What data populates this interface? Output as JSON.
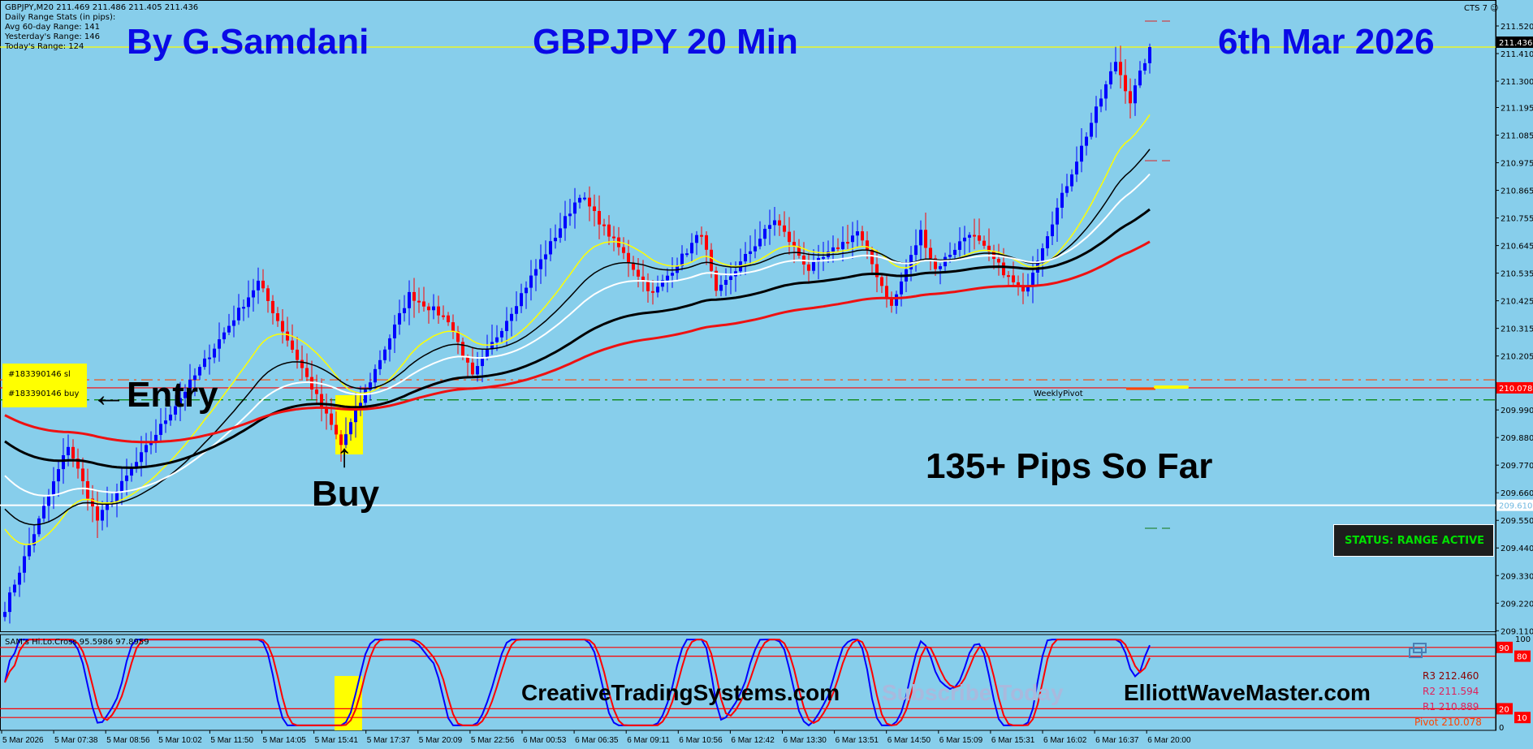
{
  "header": {
    "symbol_line": "GBPJPY,M20  211.469 211.486 211.405 211.436",
    "stats_title": "Daily Range Stats (in pips):",
    "avg_range": "Avg 60-day Range: 141",
    "yesterday_range": "Yesterday's Range: 146",
    "today_range": "Today's Range: 124",
    "cts_label": "CTS 7"
  },
  "titles": {
    "author": "By G.Samdani",
    "instrument": "GBPJPY 20 Min",
    "date": "6th Mar 2026"
  },
  "annotations": {
    "entry": "←Entry",
    "buy": "Buy",
    "buy_arrow": "↑",
    "pips": "135+ Pips So Far",
    "order_sl": "#183390146 sl",
    "order_buy": "#183390146 buy",
    "weekly_pivot": "WeeklyPivot",
    "status": "STATUS: RANGE ACTIVE",
    "site1": "CreativeTradingSystems.com",
    "site2": "ElliottWaveMaster.com",
    "watermark": "Subscribe Today"
  },
  "pivots": {
    "r3": "R3 212.460",
    "r2": "R2 211.594",
    "r1": "R1 210.889",
    "pivot": "Pivot 210.078"
  },
  "colors": {
    "background": "#87ceeb",
    "bull": "#0000ff",
    "bear": "#ff0000",
    "title": "#0a0ae6",
    "status_text": "#00e000"
  },
  "chart_data": {
    "type": "candlestick",
    "title": "GBPJPY 20 Min",
    "symbol": "GBPJPY",
    "timeframe": "M20",
    "ohlc_last": {
      "open": 211.469,
      "high": 211.486,
      "low": 211.405,
      "close": 211.436
    },
    "ylim": [
      209.06,
      211.6
    ],
    "y_ticks": [
      "211.520",
      "211.410",
      "211.300",
      "211.195",
      "211.085",
      "210.975",
      "210.865",
      "210.755",
      "210.645",
      "210.535",
      "210.425",
      "210.315",
      "210.205",
      "209.990",
      "209.880",
      "209.770",
      "209.660",
      "209.550",
      "209.440",
      "209.330",
      "209.220",
      "209.110"
    ],
    "x_ticks": [
      "5 Mar 2026",
      "5 Mar 07:38",
      "5 Mar 08:56",
      "5 Mar 10:02",
      "5 Mar 11:50",
      "5 Mar 14:05",
      "5 Mar 15:41",
      "5 Mar 17:37",
      "5 Mar 20:09",
      "5 Mar 22:56",
      "6 Mar 00:53",
      "6 Mar 06:35",
      "6 Mar 09:11",
      "6 Mar 10:56",
      "6 Mar 12:42",
      "6 Mar 13:30",
      "6 Mar 13:51",
      "6 Mar 14:50",
      "6 Mar 15:09",
      "6 Mar 15:31",
      "6 Mar 16:02",
      "6 Mar 16:37",
      "6 Mar 20:00"
    ],
    "bar_count": 236,
    "close_waypoints": [
      [
        0,
        209.2
      ],
      [
        13,
        209.85
      ],
      [
        19,
        209.55
      ],
      [
        52,
        210.5
      ],
      [
        69,
        209.85
      ],
      [
        83,
        210.45
      ],
      [
        91,
        210.35
      ],
      [
        96,
        210.12
      ],
      [
        118,
        210.85
      ],
      [
        133,
        210.45
      ],
      [
        143,
        210.7
      ],
      [
        146,
        210.45
      ],
      [
        158,
        210.75
      ],
      [
        165,
        210.55
      ],
      [
        175,
        210.7
      ],
      [
        182,
        210.4
      ],
      [
        188,
        210.7
      ],
      [
        191,
        210.55
      ],
      [
        198,
        210.7
      ],
      [
        209,
        210.45
      ],
      [
        228,
        211.38
      ],
      [
        231,
        211.22
      ],
      [
        235,
        211.436
      ]
    ],
    "moving_averages": [
      {
        "name": "MA fast",
        "color": "#ffff00",
        "period": 20,
        "seed": 209.55,
        "width": 1.5
      },
      {
        "name": "MA 2",
        "color": "#000000",
        "period": 34,
        "seed": 209.62,
        "width": 1.5
      },
      {
        "name": "MA 3",
        "color": "#ffffff",
        "period": 50,
        "seed": 209.75,
        "width": 2
      },
      {
        "name": "MA 4",
        "color": "#000000",
        "period": 89,
        "seed": 209.88,
        "width": 3
      },
      {
        "name": "MA slow",
        "color": "#ee1111",
        "period": 144,
        "seed": 209.98,
        "width": 3
      }
    ],
    "levels": [
      {
        "name": "current",
        "price": 211.436,
        "label": "211.436",
        "color": "#ffff00"
      },
      {
        "name": "weekly-pivot",
        "price": 210.078,
        "label": "210.078",
        "color": "#ff0000"
      },
      {
        "name": "support",
        "price": 209.61,
        "label": "209.610",
        "color": "#ffffff"
      },
      {
        "name": "stop-loss",
        "price": 210.11,
        "color": "#ff4500"
      },
      {
        "name": "entry",
        "price": 210.03,
        "color": "#008000"
      }
    ],
    "oscillator": {
      "name": "SAM's Hi.Lo.Cross 95.5986 97.8959",
      "ylim": [
        0,
        100
      ],
      "levels": [
        90,
        80,
        20,
        10
      ],
      "top_label": "100",
      "bottom_label": "0",
      "fast_color": "#0000ff",
      "slow_color": "#ff0000"
    }
  }
}
